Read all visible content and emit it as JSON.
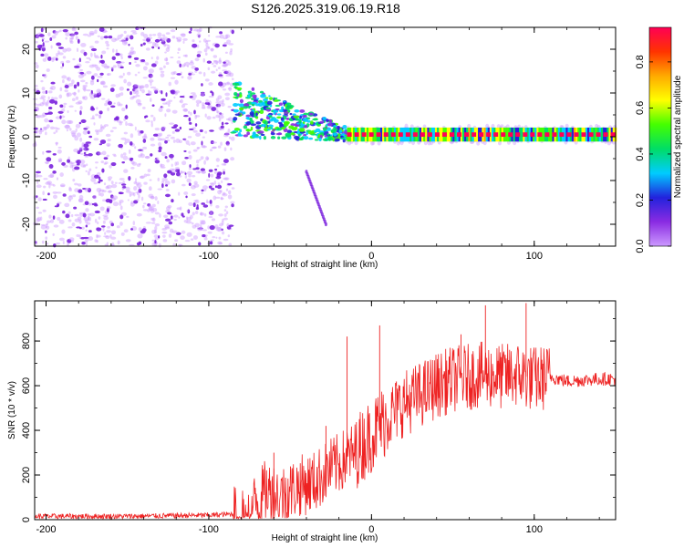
{
  "title": "S126.2025.319.06.19.R18",
  "colors": {
    "snr_line": "#ee2222",
    "purple_dot": "#7a22dd",
    "light_dot": "#cc99ff",
    "colorbar_stops": [
      "#cc99ff",
      "#8a2be2",
      "#2222dd",
      "#00ccff",
      "#00dd66",
      "#44ff00",
      "#ffff00",
      "#ffaa00",
      "#ff3300",
      "#ff0055"
    ]
  },
  "chart_data": [
    {
      "type": "heatmap",
      "title": "",
      "xlabel": "Height of straight line (km)",
      "ylabel": "Frequency (Hz)",
      "xlim": [
        -207,
        150
      ],
      "ylim": [
        -25,
        25
      ],
      "xticks": [
        -200,
        -100,
        0,
        100
      ],
      "xtick_labels": [
        "-200",
        "-100",
        "0",
        "100"
      ],
      "yticks": [
        -20,
        -10,
        0,
        10,
        20
      ],
      "ytick_labels": [
        "-20",
        "-10",
        "0",
        "10",
        "20"
      ],
      "colorbar": {
        "label": "Normalized spectral amplitude",
        "range": [
          0,
          0.95
        ],
        "ticks": [
          0,
          0.2,
          0.4,
          0.6,
          0.8
        ],
        "tick_labels": [
          "0.0",
          "0.2",
          "0.4",
          "0.6",
          "0.8"
        ]
      },
      "features": [
        {
          "name": "broadband noise",
          "x_range": [
            -207,
            -85
          ],
          "freq_range": [
            -25,
            25
          ],
          "amplitude": 0.2
        },
        {
          "name": "transition",
          "x_range": [
            -85,
            -15
          ],
          "freq_range": [
            -5,
            8
          ],
          "amplitude": 0.45
        },
        {
          "name": "dispersive streak",
          "x_range": [
            -40,
            -28
          ],
          "freq_range": [
            -20,
            -8
          ],
          "amplitude": 0.15
        },
        {
          "name": "carrier line",
          "x_range": [
            -15,
            150
          ],
          "freq_center": 0.5,
          "amplitude": 0.9
        }
      ]
    },
    {
      "type": "line",
      "title": "",
      "xlabel": "Height of straight line (km)",
      "ylabel": "SNR (10 * v/v)",
      "xlim": [
        -207,
        150
      ],
      "ylim": [
        0,
        980
      ],
      "xticks": [
        -200,
        -100,
        0,
        100
      ],
      "xtick_labels": [
        "-200",
        "-100",
        "0",
        "100"
      ],
      "yticks": [
        0,
        200,
        400,
        600,
        800
      ],
      "ytick_labels": [
        "0",
        "200",
        "400",
        "600",
        "800"
      ],
      "series": [
        {
          "name": "SNR",
          "x": [
            -207,
            -150,
            -100,
            -85,
            -75,
            -65,
            -55,
            -45,
            -35,
            -25,
            -20,
            -15,
            -10,
            -5,
            0,
            5,
            10,
            20,
            30,
            40,
            50,
            60,
            70,
            80,
            90,
            100,
            110,
            120,
            130,
            140,
            150
          ],
          "y": [
            15,
            15,
            20,
            25,
            40,
            130,
            110,
            150,
            170,
            230,
            250,
            280,
            300,
            340,
            380,
            420,
            460,
            520,
            560,
            600,
            630,
            640,
            650,
            640,
            650,
            630,
            640,
            620,
            625,
            630,
            630
          ]
        }
      ],
      "spikes": [
        {
          "x": -60,
          "y": 300
        },
        {
          "x": -28,
          "y": 420
        },
        {
          "x": -15,
          "y": 820
        },
        {
          "x": 5,
          "y": 870
        },
        {
          "x": 55,
          "y": 830
        },
        {
          "x": 70,
          "y": 960
        },
        {
          "x": 95,
          "y": 970
        }
      ]
    }
  ]
}
